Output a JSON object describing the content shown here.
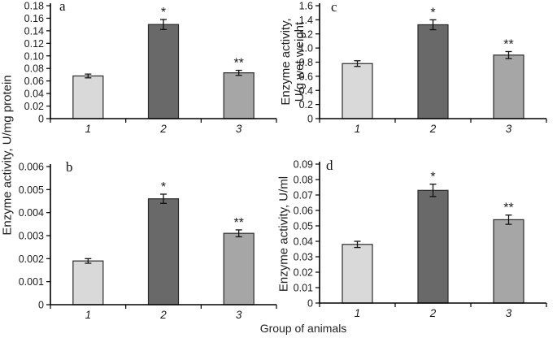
{
  "figure": {
    "background": "#ffffff",
    "left_axis_label": "Enzyme activity, U/mg protein",
    "bottom_axis_label": "Group of animals",
    "bar_colors": [
      "#d9d9d9",
      "#696969",
      "#a6a6a6"
    ],
    "bar_border_color": "#2b2b2b",
    "axis_color": "#000000",
    "error_bar_color": "#111111",
    "text_color": "#1a1a1a",
    "significance_markers": {
      "group2": "*",
      "group3": "**"
    }
  },
  "chart_data": [
    {
      "type": "bar",
      "panel": "a",
      "ylabel": "Enzyme activity, U/mg protein",
      "xlabel": "Group of animals",
      "categories": [
        "1",
        "2",
        "3"
      ],
      "values": [
        0.068,
        0.15,
        0.073
      ],
      "errors": [
        0.003,
        0.008,
        0.004
      ],
      "annotations": [
        "",
        "*",
        "**"
      ],
      "ylim": [
        0,
        0.18
      ],
      "ytick_step": 0.02,
      "tick_decimals": 2
    },
    {
      "type": "bar",
      "panel": "b",
      "ylabel": "Enzyme activity, U/mg protein",
      "xlabel": "Group of animals",
      "categories": [
        "1",
        "2",
        "3"
      ],
      "values": [
        0.0019,
        0.0046,
        0.0031
      ],
      "errors": [
        0.0001,
        0.0002,
        0.00015
      ],
      "annotations": [
        "",
        "*",
        "**"
      ],
      "ylim": [
        0,
        0.006
      ],
      "ytick_step": 0.001,
      "tick_decimals": 3
    },
    {
      "type": "bar",
      "panel": "c",
      "ylabel": "Enzyme activity, U/g wet weight",
      "ylabel_lines": [
        "Enzyme activity,",
        "U/g wet weight"
      ],
      "xlabel": "Group of animals",
      "categories": [
        "1",
        "2",
        "3"
      ],
      "values": [
        0.78,
        1.33,
        0.9
      ],
      "errors": [
        0.04,
        0.07,
        0.05
      ],
      "annotations": [
        "",
        "*",
        "**"
      ],
      "ylim": [
        0,
        1.6
      ],
      "ytick_step": 0.2,
      "tick_decimals": 1
    },
    {
      "type": "bar",
      "panel": "d",
      "ylabel": "Enzyme activity, U/ml",
      "xlabel": "Group of animals",
      "categories": [
        "1",
        "2",
        "3"
      ],
      "values": [
        0.038,
        0.073,
        0.054
      ],
      "errors": [
        0.002,
        0.004,
        0.003
      ],
      "annotations": [
        "",
        "*",
        "**"
      ],
      "ylim": [
        0,
        0.09
      ],
      "ytick_step": 0.01,
      "tick_decimals": 2
    }
  ]
}
